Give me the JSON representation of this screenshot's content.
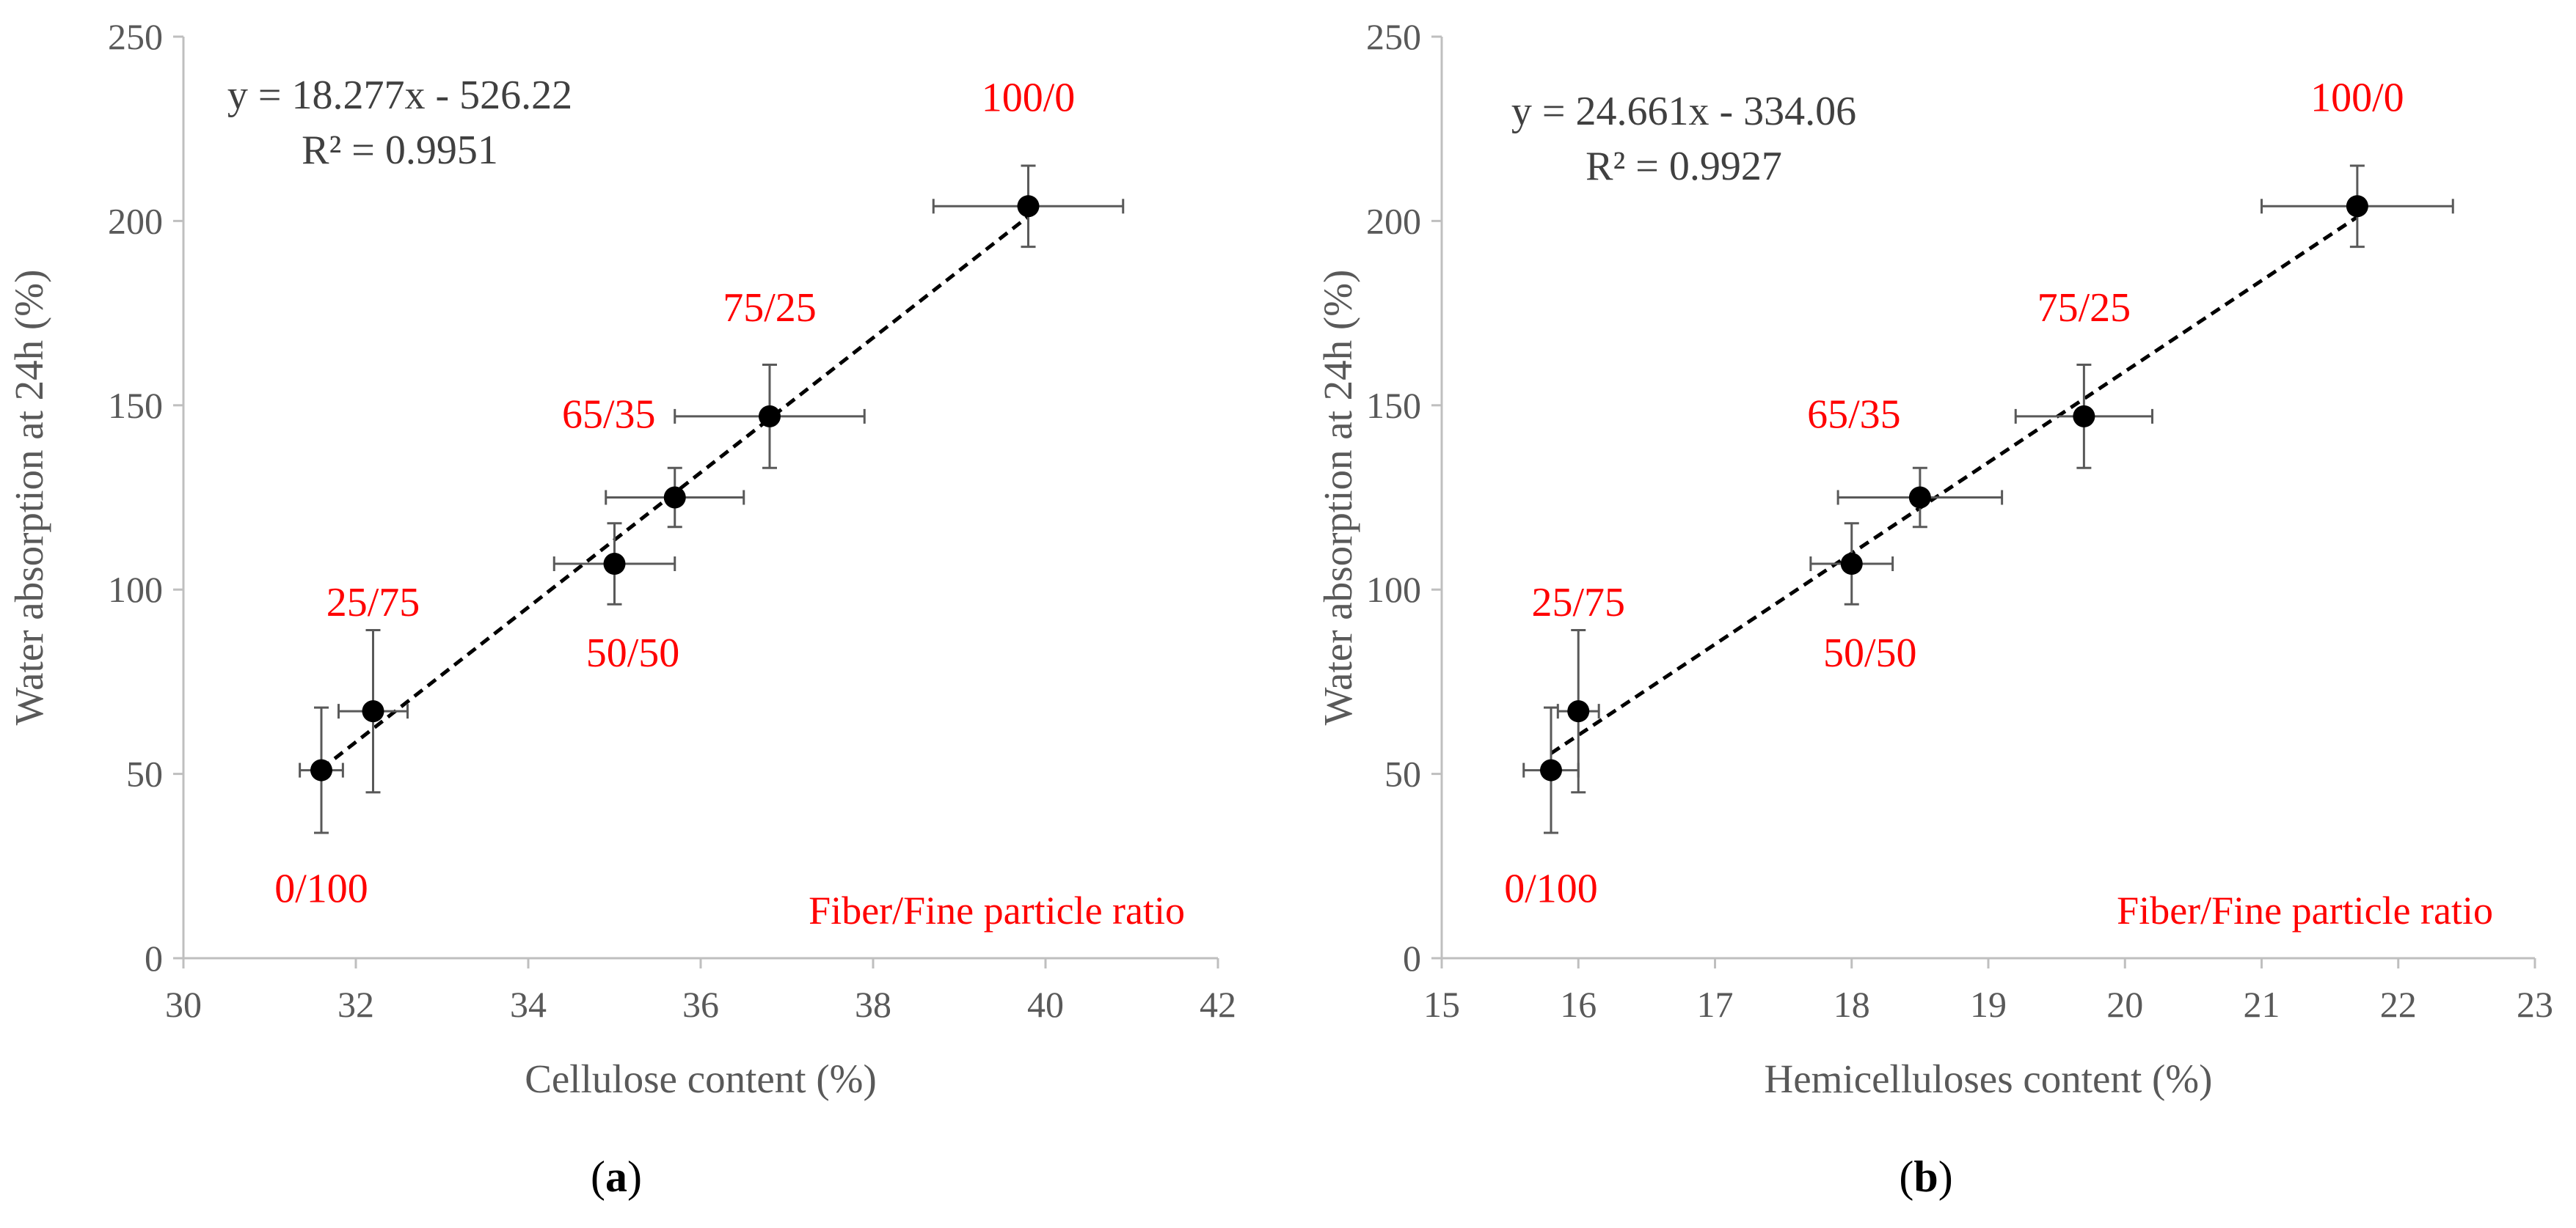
{
  "colors": {
    "axis": "#bfbfbf",
    "tick_text": "#595959",
    "marker": "#000000",
    "errorbar": "#595959",
    "trendline": "#000000",
    "point_label": "#ff0000",
    "equation": "#404040"
  },
  "chart_data": [
    {
      "id": "a",
      "type": "scatter",
      "panel_label": {
        "open": "(",
        "letter": "a",
        "close": ")"
      },
      "xlabel": "Cellulose content (%)",
      "ylabel": "Water absorption at 24h (%)",
      "xlim": [
        30,
        42
      ],
      "ylim": [
        0,
        250
      ],
      "xticks": [
        30,
        32,
        34,
        36,
        38,
        40,
        42
      ],
      "yticks": [
        0,
        50,
        100,
        150,
        200,
        250
      ],
      "grid": false,
      "equation": "y = 18.277x - 526.22",
      "r_squared": "R² = 0.9951",
      "note": "Fiber/Fine particle ratio",
      "trendline": {
        "slope": 18.277,
        "intercept": -526.22,
        "x_range": [
          31.6,
          39.8
        ]
      },
      "points": [
        {
          "x": 31.6,
          "y": 51,
          "xerr": 0.25,
          "yerr": 17,
          "label": "0/100",
          "label_pos": "below-left"
        },
        {
          "x": 32.2,
          "y": 67,
          "xerr": 0.4,
          "yerr": 22,
          "label": "25/75",
          "label_pos": "above"
        },
        {
          "x": 35.0,
          "y": 107,
          "xerr": 0.7,
          "yerr": 11,
          "label": "50/50",
          "label_pos": "below"
        },
        {
          "x": 35.7,
          "y": 125,
          "xerr": 0.8,
          "yerr": 8,
          "label": "65/35",
          "label_pos": "above-left"
        },
        {
          "x": 36.8,
          "y": 147,
          "xerr": 1.1,
          "yerr": 14,
          "label": "75/25",
          "label_pos": "above"
        },
        {
          "x": 39.8,
          "y": 204,
          "xerr": 1.1,
          "yerr": 11,
          "label": "100/0",
          "label_pos": "above"
        }
      ]
    },
    {
      "id": "b",
      "type": "scatter",
      "panel_label": {
        "open": "(",
        "letter": "b",
        "close": ")"
      },
      "xlabel": "Hemicelluloses content (%)",
      "ylabel": "Water absorption at 24h (%)",
      "xlim": [
        15,
        23
      ],
      "ylim": [
        0,
        250
      ],
      "xticks": [
        15,
        16,
        17,
        18,
        19,
        20,
        21,
        22,
        23
      ],
      "yticks": [
        0,
        50,
        100,
        150,
        200,
        250
      ],
      "grid": false,
      "equation": "y = 24.661x - 334.06",
      "r_squared": "R² = 0.9927",
      "note": "Fiber/Fine particle ratio",
      "trendline": {
        "slope": 24.661,
        "intercept": -334.06,
        "x_range": [
          15.8,
          21.7
        ]
      },
      "points": [
        {
          "x": 15.8,
          "y": 51,
          "xerr": 0.2,
          "yerr": 17,
          "label": "0/100",
          "label_pos": "below-left"
        },
        {
          "x": 16.0,
          "y": 67,
          "xerr": 0.15,
          "yerr": 22,
          "label": "25/75",
          "label_pos": "above"
        },
        {
          "x": 18.0,
          "y": 107,
          "xerr": 0.3,
          "yerr": 11,
          "label": "50/50",
          "label_pos": "below"
        },
        {
          "x": 18.5,
          "y": 125,
          "xerr": 0.6,
          "yerr": 8,
          "label": "65/35",
          "label_pos": "above-left"
        },
        {
          "x": 19.7,
          "y": 147,
          "xerr": 0.5,
          "yerr": 14,
          "label": "75/25",
          "label_pos": "above"
        },
        {
          "x": 21.7,
          "y": 204,
          "xerr": 0.7,
          "yerr": 11,
          "label": "100/0",
          "label_pos": "above"
        }
      ]
    }
  ]
}
